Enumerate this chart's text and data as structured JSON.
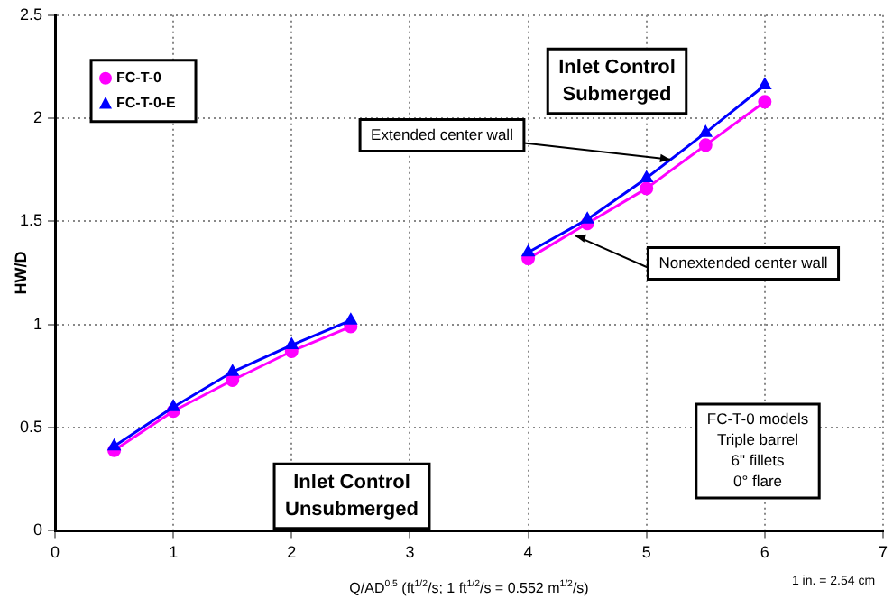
{
  "chart_data": {
    "type": "line",
    "xlabel": "Q/AD$^{0.5}$ (ft$^{1/2}$/s; 1 ft$^{1/2}$/s = 0.552 m$^{1/2}$/s)",
    "ylabel": "HW/D",
    "x": [
      0.5,
      1,
      1.5,
      2,
      2.5,
      3,
      4,
      4.5,
      5,
      5.5,
      6
    ],
    "series": [
      {
        "name": "FC-T-0",
        "color": "#ff00ff",
        "marker": "circle",
        "values": [
          0.39,
          0.58,
          0.73,
          0.87,
          0.99,
          null,
          1.32,
          1.49,
          1.66,
          1.87,
          2.08
        ]
      },
      {
        "name": "FC-T-0-E",
        "color": "#0000ff",
        "marker": "triangle",
        "values": [
          0.41,
          0.6,
          0.77,
          0.9,
          1.02,
          null,
          1.35,
          1.51,
          1.71,
          1.93,
          2.16
        ]
      }
    ],
    "xlim": [
      0,
      7
    ],
    "xticks": [
      0,
      1,
      2,
      3,
      4,
      5,
      6,
      7
    ],
    "ylim": [
      0,
      2.5
    ],
    "yticks": [
      0,
      0.5,
      1,
      1.5,
      2,
      2.5
    ],
    "grid": true,
    "legend": "top left",
    "line_style": "solid",
    "annotations": [
      "Inlet Control\nSubmerged",
      {
        "text": "Extended center wall",
        "x": 5.2,
        "y": 1.8
      },
      {
        "text": "Nonextended center wall",
        "x": 4.4,
        "y": 1.43
      },
      "Inlet Control\nUnsubmerged",
      "FC-T-0 models\nTriple barrel\n6\" fillets\n0° flare",
      "1 in. = 2.54 cm"
    ]
  }
}
